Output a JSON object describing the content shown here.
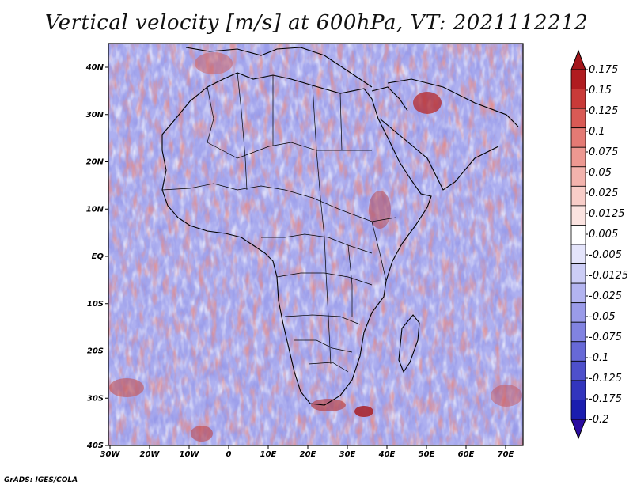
{
  "title": "Vertical velocity [m/s] at 600hPa, VT: 2021112212",
  "footer": "GrADS: IGES/COLA",
  "map": {
    "variable": "Vertical velocity",
    "units": "m/s",
    "level": "600hPa",
    "valid_time": "2021112212",
    "lat_labels": [
      "40N",
      "30N",
      "20N",
      "10N",
      "EQ",
      "10S",
      "20S",
      "30S",
      "40S"
    ],
    "lon_labels": [
      "30W",
      "20W",
      "10W",
      "0",
      "10E",
      "20E",
      "30E",
      "40E",
      "50E",
      "60E",
      "70E"
    ]
  },
  "colorbar": {
    "labels": [
      "0.175",
      "0.15",
      "0.125",
      "0.1",
      "0.075",
      "0.05",
      "0.025",
      "0.0125",
      "0.005",
      "-0.005",
      "-0.0125",
      "-0.025",
      "-0.05",
      "-0.075",
      "-0.1",
      "-0.125",
      "-0.175",
      "-0.2"
    ],
    "colors": [
      "#b01c20",
      "#c93a38",
      "#d95a55",
      "#e47a74",
      "#ed9891",
      "#f3b3ad",
      "#f8cdc8",
      "#fbe3e0",
      "#ffffff",
      "#e4e4fb",
      "#cccdf6",
      "#b3b4f0",
      "#9a9be9",
      "#8183e1",
      "#6769d7",
      "#4e50cb",
      "#3235bd",
      "#1a1daf",
      "#2a0ca0"
    ],
    "top_arrow_color": "#a3161b",
    "bottom_arrow_color": "#2a0ca0"
  }
}
